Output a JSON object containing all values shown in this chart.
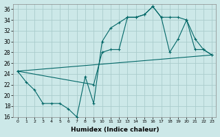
{
  "bg_color": "#cce8e8",
  "grid_color": "#aacccc",
  "line_color": "#006666",
  "xlabel": "Humidex (Indice chaleur)",
  "ylim": [
    16,
    37
  ],
  "xlim": [
    -0.5,
    23.5
  ],
  "yticks": [
    16,
    18,
    20,
    22,
    24,
    26,
    28,
    30,
    32,
    34,
    36
  ],
  "xticks": [
    0,
    1,
    2,
    3,
    4,
    5,
    6,
    7,
    8,
    9,
    10,
    11,
    12,
    13,
    14,
    15,
    16,
    17,
    18,
    19,
    20,
    21,
    22,
    23
  ],
  "line1_x": [
    0,
    1,
    2,
    3,
    4,
    5,
    6,
    7,
    8,
    9,
    10,
    11,
    12,
    13,
    14,
    15,
    16,
    17,
    18,
    19,
    20,
    21,
    22,
    23
  ],
  "line1_y": [
    24.5,
    22.5,
    21,
    18.5,
    18.5,
    18.5,
    17.5,
    16,
    23.5,
    18.5,
    30,
    32.5,
    33.5,
    34.5,
    34.5,
    35,
    36.5,
    34.5,
    28,
    30.5,
    34,
    30.5,
    28.5,
    27.5
  ],
  "line2_x": [
    0,
    9,
    10,
    11,
    12,
    13,
    14,
    15,
    16,
    17,
    18,
    19,
    20,
    21,
    22,
    23
  ],
  "line2_y": [
    24.5,
    22,
    28,
    28.5,
    28.5,
    34.5,
    34.5,
    35,
    36.5,
    34.5,
    34.5,
    34.5,
    34,
    28.5,
    28.5,
    27.5
  ],
  "line3_x": [
    0,
    23
  ],
  "line3_y": [
    24.5,
    27.5
  ]
}
